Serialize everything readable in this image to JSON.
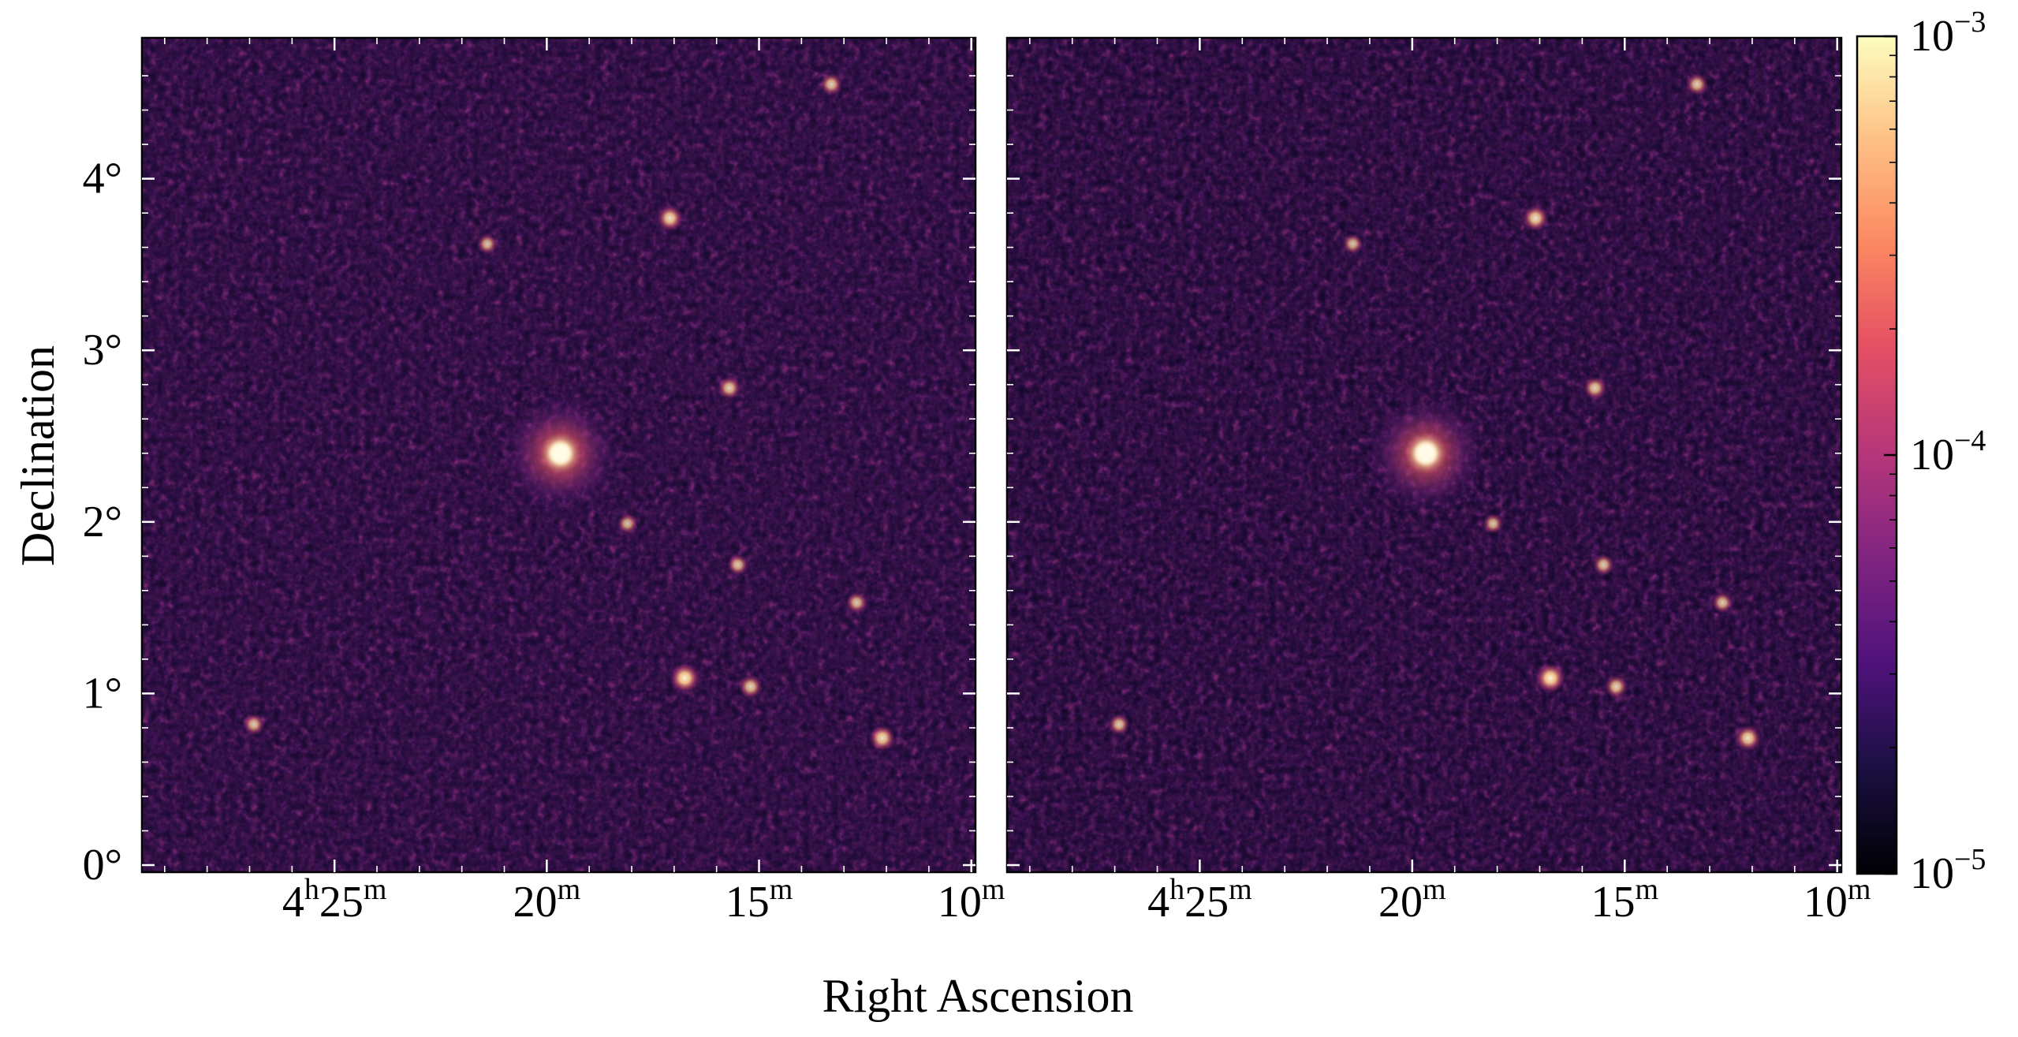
{
  "figure": {
    "xlabel": "Right Ascension",
    "ylabel": "Declination",
    "panels": [
      {
        "name": "left-panel"
      },
      {
        "name": "right-panel"
      }
    ],
    "dec_ticks": [
      {
        "value": 0,
        "label": "0°"
      },
      {
        "value": 1,
        "label": "1°"
      },
      {
        "value": 2,
        "label": "2°"
      },
      {
        "value": 3,
        "label": "3°"
      },
      {
        "value": 4,
        "label": "4°"
      }
    ],
    "ra_ticks": [
      {
        "minutes": 25,
        "h": "4",
        "m": "25",
        "label": "4h25m"
      },
      {
        "minutes": 20,
        "h": "",
        "m": "20",
        "label": "20m"
      },
      {
        "minutes": 15,
        "h": "",
        "m": "15",
        "label": "15m"
      },
      {
        "minutes": 10,
        "h": "",
        "m": "10",
        "label": "10m"
      }
    ],
    "ra_sup_h": "h",
    "ra_sup_m": "m",
    "colorbar": {
      "scale": "log",
      "colormap": "magma",
      "vmin": 1e-05,
      "vmax": 0.001,
      "ticks": [
        {
          "value": 0.001,
          "base": "10",
          "exp": "−3"
        },
        {
          "value": 0.0001,
          "base": "10",
          "exp": "−4"
        },
        {
          "value": 1e-05,
          "base": "10",
          "exp": "−5"
        }
      ]
    },
    "sources": [
      {
        "ra_min": 19.68,
        "dec": 2.4,
        "level": 1.0,
        "kind": "bright-extended"
      },
      {
        "ra_min": 16.75,
        "dec": 1.09,
        "level": 0.95,
        "kind": "point"
      },
      {
        "ra_min": 12.1,
        "dec": 0.74,
        "level": 0.75,
        "kind": "point"
      },
      {
        "ra_min": 17.1,
        "dec": 3.77,
        "level": 0.75,
        "kind": "point"
      },
      {
        "ra_min": 15.2,
        "dec": 1.04,
        "level": 0.6,
        "kind": "point"
      },
      {
        "ra_min": 15.7,
        "dec": 2.78,
        "level": 0.6,
        "kind": "point"
      },
      {
        "ra_min": 13.3,
        "dec": 4.55,
        "level": 0.55,
        "kind": "point"
      },
      {
        "ra_min": 15.5,
        "dec": 1.75,
        "level": 0.5,
        "kind": "point"
      },
      {
        "ra_min": 12.7,
        "dec": 1.53,
        "level": 0.5,
        "kind": "point"
      },
      {
        "ra_min": 26.9,
        "dec": 0.82,
        "level": 0.5,
        "kind": "point"
      },
      {
        "ra_min": 18.1,
        "dec": 1.99,
        "level": 0.45,
        "kind": "point"
      },
      {
        "ra_min": 21.4,
        "dec": 3.62,
        "level": 0.45,
        "kind": "point"
      }
    ]
  }
}
